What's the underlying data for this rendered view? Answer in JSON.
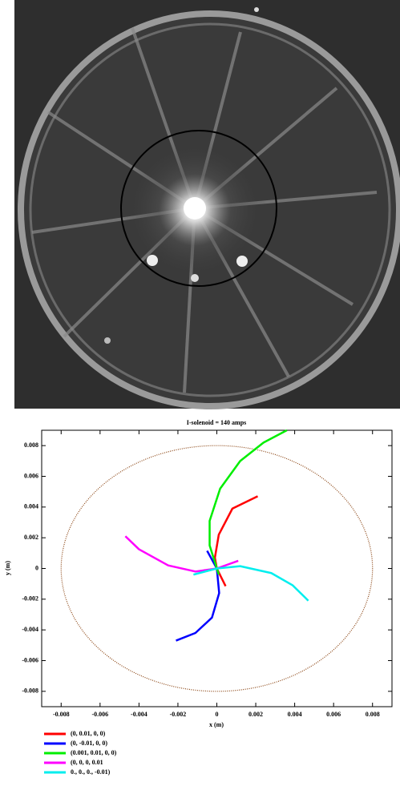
{
  "chart_data": {
    "type": "line",
    "title": "I-solenoid = 140 amps",
    "x_label": "x (m)",
    "y_label": "y (m)",
    "xlim": [
      -0.009,
      0.009
    ],
    "ylim": [
      -0.009,
      0.009
    ],
    "xticks": [
      -0.008,
      -0.006,
      -0.004,
      -0.002,
      0,
      0.002,
      0.004,
      0.006,
      0.008
    ],
    "yticks": [
      -0.008,
      -0.006,
      -0.004,
      -0.002,
      0,
      0.002,
      0.004,
      0.006,
      0.008
    ],
    "reference_circle": {
      "radius": 0.008,
      "color": "#8b4513"
    },
    "series": [
      {
        "name": "(0, 0.01, 0, 0)",
        "color": "#ff0000",
        "x": [
          0.00045,
          0,
          -0.0001,
          0.0001,
          0.0008,
          0.0021
        ],
        "y": [
          -0.00115,
          0,
          0.0007,
          0.0022,
          0.0039,
          0.0047
        ]
      },
      {
        "name": "(0, -0.01, 0, 0)",
        "color": "#0000ff",
        "x": [
          -0.0005,
          0,
          0.00012,
          -0.00025,
          -0.0011,
          -0.0021
        ],
        "y": [
          0.00115,
          0,
          -0.0016,
          -0.0032,
          -0.0042,
          -0.0047
        ]
      },
      {
        "name": "(0.001, 0.01, 0, 0)",
        "color": "#00ee00",
        "x": [
          0.0001,
          -0.00037,
          -0.00037,
          0.00017,
          0.0012,
          0.0024,
          0.0036
        ],
        "y": [
          -0.0004,
          0.0015,
          0.0031,
          0.0052,
          0.007,
          0.0082,
          0.009
        ]
      },
      {
        "name": "(0, 0, 0, 0.01",
        "color": "#ff00ff",
        "x": [
          0.0011,
          0,
          -0.0011,
          -0.0025,
          -0.004,
          -0.0047
        ],
        "y": [
          0.0005,
          0,
          -0.0002,
          0.0002,
          0.00125,
          0.0021
        ]
      },
      {
        "name": "0., 0., 0., -0.01)",
        "color": "#00eeee",
        "x": [
          -0.0012,
          0,
          0.0012,
          0.0028,
          0.0039,
          0.0047
        ],
        "y": [
          -0.0004,
          0,
          0.00015,
          -0.0003,
          -0.0011,
          -0.0021
        ]
      }
    ]
  }
}
